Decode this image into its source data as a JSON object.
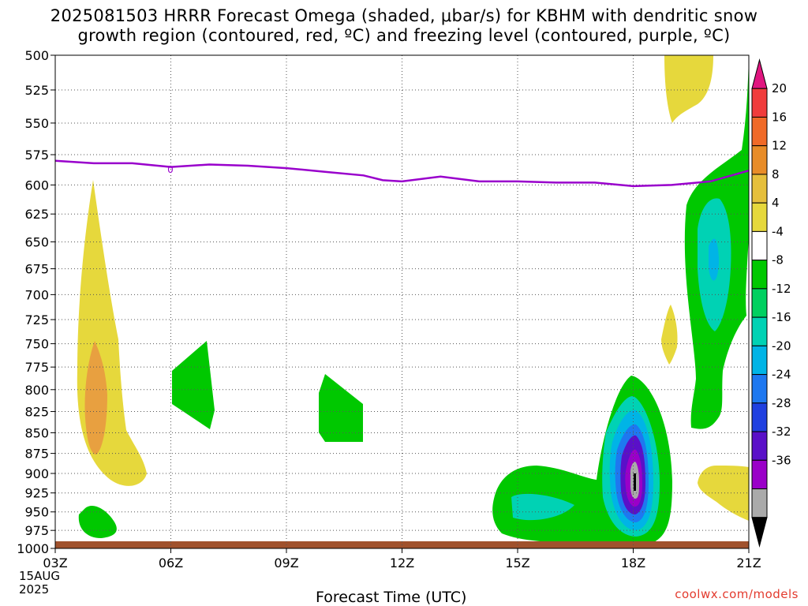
{
  "title_line1": "2025081503 HRRR Forecast Omega (shaded, μbar/s) for KBHM with dendritic snow",
  "title_line2": "growth region (contoured, red, ºC) and freezing level (contoured, purple, ºC)",
  "watermark": "coolwx.com/models",
  "date_line1": "15AUG",
  "date_line2": "2025",
  "chart_data": {
    "type": "heatmap",
    "xlabel": "Forecast Time (UTC)",
    "x_ticks": [
      "03Z",
      "06Z",
      "09Z",
      "12Z",
      "15Z",
      "18Z",
      "21Z"
    ],
    "y_ticks": [
      "500",
      "525",
      "550",
      "575",
      "600",
      "625",
      "650",
      "675",
      "700",
      "725",
      "750",
      "775",
      "800",
      "825",
      "850",
      "875",
      "900",
      "925",
      "950",
      "975",
      "1000"
    ],
    "y_scale": "log-pressure",
    "grid": "dotted",
    "colorbar": {
      "labels": [
        "20",
        "16",
        "12",
        "8",
        "4",
        "-4",
        "-8",
        "-12",
        "-16",
        "-20",
        "-24",
        "-28",
        "-32",
        "-36"
      ],
      "colors": [
        "#e0157f",
        "#f03c3c",
        "#f06a28",
        "#e88c28",
        "#e6bf3c",
        "#e6d83c",
        "#ffffff",
        "#00c800",
        "#00d060",
        "#00d2b4",
        "#00b4e6",
        "#1e78f0",
        "#2040e0",
        "#5a10c8",
        "#9a00c8",
        "#aaaaaa",
        "#000000"
      ]
    },
    "freezing_level": {
      "label": "0",
      "points": [
        [
          3,
          580
        ],
        [
          4,
          582
        ],
        [
          5,
          582
        ],
        [
          6,
          585
        ],
        [
          7,
          583
        ],
        [
          8,
          584
        ],
        [
          9,
          586
        ],
        [
          10,
          589
        ],
        [
          11,
          592
        ],
        [
          11.5,
          596
        ],
        [
          12,
          597
        ],
        [
          13,
          593
        ],
        [
          14,
          597
        ],
        [
          15,
          597
        ],
        [
          16,
          598
        ],
        [
          17,
          598
        ],
        [
          18,
          601
        ],
        [
          19,
          600
        ],
        [
          20,
          597
        ],
        [
          21,
          588
        ]
      ]
    }
  }
}
